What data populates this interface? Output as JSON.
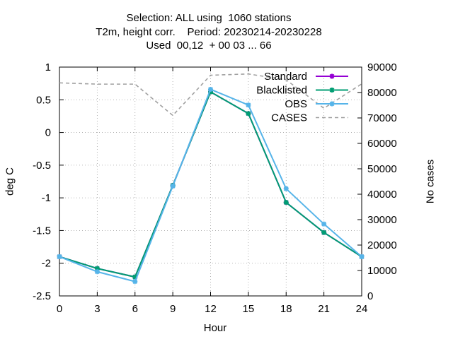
{
  "chart_data": {
    "type": "line",
    "title_lines": [
      "Selection: ALL using  1060 stations",
      "T2m, height corr.    Period: 20230214-20230228",
      "Used  00,12  + 00 03 ... 66"
    ],
    "xlabel": "Hour",
    "ylabel": "deg C",
    "y2label": "No cases",
    "x": [
      0,
      3,
      6,
      9,
      12,
      15,
      18,
      21,
      24
    ],
    "xlim": [
      0,
      24
    ],
    "ylim": [
      -2.5,
      1
    ],
    "y2lim": [
      0,
      90000
    ],
    "xticks": [
      "0",
      "3",
      "6",
      "9",
      "12",
      "15",
      "18",
      "21",
      "24"
    ],
    "yticks": [
      "1",
      "0.5",
      "0",
      "-0.5",
      "-1",
      "-1.5",
      "-2",
      "-2.5"
    ],
    "y2ticks": [
      "90000",
      "80000",
      "70000",
      "60000",
      "50000",
      "40000",
      "30000",
      "20000",
      "10000",
      "0"
    ],
    "grid": true,
    "legend_position": "top-right",
    "series": [
      {
        "name": "Standard",
        "axis": "y",
        "color": "#9400d3",
        "style": "solid",
        "values": [
          -1.9,
          -2.08,
          -2.21,
          -0.81,
          0.62,
          0.29,
          -1.07,
          -1.53,
          -1.9
        ]
      },
      {
        "name": "Blacklisted",
        "axis": "y",
        "color": "#009e73",
        "style": "solid",
        "values": [
          -1.9,
          -2.08,
          -2.21,
          -0.81,
          0.62,
          0.29,
          -1.07,
          -1.53,
          -1.9
        ]
      },
      {
        "name": "OBS",
        "axis": "y",
        "color": "#56b4e9",
        "style": "solid",
        "values": [
          -1.9,
          -2.13,
          -2.28,
          -0.82,
          0.66,
          0.42,
          -0.86,
          -1.4,
          -1.9
        ]
      },
      {
        "name": "CASES",
        "axis": "y2",
        "color": "#a0a0a0",
        "style": "dashed",
        "values": [
          83800,
          83300,
          83300,
          71000,
          86800,
          87300,
          85000,
          73800,
          83400
        ]
      }
    ]
  }
}
